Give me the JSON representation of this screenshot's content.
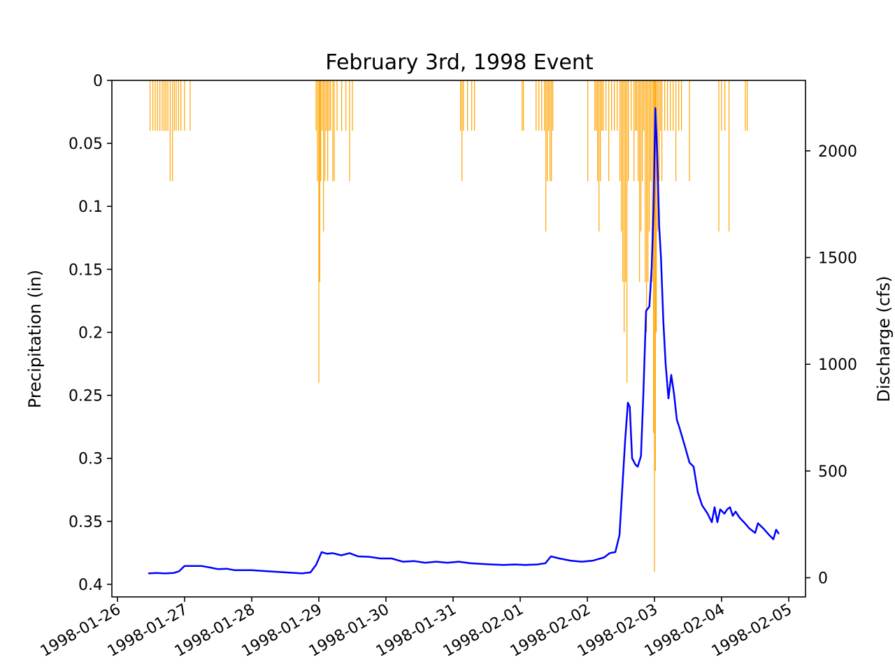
{
  "chart_data": {
    "type": "bar+line",
    "title": "February 3rd, 1998 Event",
    "y_left": {
      "label": "Precipitation (in)",
      "inverted": true,
      "lim": [
        0,
        0.41
      ],
      "ticks": [
        0,
        0.05,
        0.1,
        0.15,
        0.2,
        0.25,
        0.3,
        0.35,
        0.4
      ],
      "tick_labels": [
        "0",
        "0.05",
        "0.1",
        "0.15",
        "0.2",
        "0.25",
        "0.3",
        "0.35",
        "0.4"
      ]
    },
    "y_right": {
      "label": "Discharge (cfs)",
      "lim": [
        -90,
        2330
      ],
      "ticks": [
        0,
        500,
        1000,
        1500,
        2000
      ],
      "tick_labels": [
        "0",
        "500",
        "1000",
        "1500",
        "2000"
      ]
    },
    "x_axis": {
      "lim": [
        "1998-01-25 22:00",
        "1998-02-05 06:00"
      ],
      "ticks": [
        "1998-01-26",
        "1998-01-27",
        "1998-01-28",
        "1998-01-29",
        "1998-01-30",
        "1998-01-31",
        "1998-02-01",
        "1998-02-02",
        "1998-02-03",
        "1998-02-04",
        "1998-02-05"
      ],
      "tick_labels": [
        "1998-01-26",
        "1998-01-27",
        "1998-01-28",
        "1998-01-29",
        "1998-01-30",
        "1998-01-31",
        "1998-02-01",
        "1998-02-02",
        "1998-02-03",
        "1998-02-04",
        "1998-02-05"
      ]
    },
    "series": [
      {
        "type": "bar",
        "color": "#FFA500",
        "axis": "left",
        "points": [
          [
            "1998-01-26 11:40",
            0.04
          ],
          [
            "1998-01-26 12:40",
            0.04
          ],
          [
            "1998-01-26 13:30",
            0.04
          ],
          [
            "1998-01-26 14:20",
            0.04
          ],
          [
            "1998-01-26 15:10",
            0.04
          ],
          [
            "1998-01-26 16:00",
            0.04
          ],
          [
            "1998-01-26 16:40",
            0.04
          ],
          [
            "1998-01-26 17:20",
            0.04
          ],
          [
            "1998-01-26 18:00",
            0.04
          ],
          [
            "1998-01-26 18:50",
            0.08
          ],
          [
            "1998-01-26 19:40",
            0.08
          ],
          [
            "1998-01-26 20:20",
            0.04
          ],
          [
            "1998-01-26 21:00",
            0.04
          ],
          [
            "1998-01-26 21:50",
            0.04
          ],
          [
            "1998-01-26 22:40",
            0.04
          ],
          [
            "1998-01-27 00:00",
            0.04
          ],
          [
            "1998-01-27 02:00",
            0.04
          ],
          [
            "1998-01-28 23:00",
            0.04
          ],
          [
            "1998-01-28 23:30",
            0.08
          ],
          [
            "1998-01-29 00:00",
            0.24
          ],
          [
            "1998-01-29 00:20",
            0.16
          ],
          [
            "1998-01-29 00:40",
            0.08
          ],
          [
            "1998-01-29 01:10",
            0.04
          ],
          [
            "1998-01-29 01:40",
            0.12
          ],
          [
            "1998-01-29 02:10",
            0.08
          ],
          [
            "1998-01-29 02:40",
            0.04
          ],
          [
            "1998-01-29 03:10",
            0.08
          ],
          [
            "1998-01-29 03:40",
            0.04
          ],
          [
            "1998-01-29 04:10",
            0.04
          ],
          [
            "1998-01-29 05:00",
            0.08
          ],
          [
            "1998-01-29 05:30",
            0.08
          ],
          [
            "1998-01-29 06:30",
            0.04
          ],
          [
            "1998-01-29 08:10",
            0.04
          ],
          [
            "1998-01-29 09:40",
            0.04
          ],
          [
            "1998-01-29 11:00",
            0.08
          ],
          [
            "1998-01-29 12:00",
            0.04
          ],
          [
            "1998-01-31 02:40",
            0.04
          ],
          [
            "1998-01-31 03:10",
            0.08
          ],
          [
            "1998-01-31 03:40",
            0.04
          ],
          [
            "1998-01-31 05:10",
            0.04
          ],
          [
            "1998-01-31 06:40",
            0.04
          ],
          [
            "1998-01-31 07:40",
            0.04
          ],
          [
            "1998-02-01 00:40",
            0.04
          ],
          [
            "1998-02-01 01:10",
            0.04
          ],
          [
            "1998-02-01 05:40",
            0.04
          ],
          [
            "1998-02-01 06:40",
            0.04
          ],
          [
            "1998-02-01 07:40",
            0.04
          ],
          [
            "1998-02-01 08:40",
            0.04
          ],
          [
            "1998-02-01 09:10",
            0.12
          ],
          [
            "1998-02-01 09:40",
            0.08
          ],
          [
            "1998-02-01 10:10",
            0.04
          ],
          [
            "1998-02-01 10:40",
            0.08
          ],
          [
            "1998-02-01 11:10",
            0.08
          ],
          [
            "1998-02-01 11:40",
            0.04
          ],
          [
            "1998-02-02 00:10",
            0.08
          ],
          [
            "1998-02-02 02:40",
            0.04
          ],
          [
            "1998-02-02 03:10",
            0.04
          ],
          [
            "1998-02-02 03:40",
            0.08
          ],
          [
            "1998-02-02 04:10",
            0.12
          ],
          [
            "1998-02-02 04:40",
            0.08
          ],
          [
            "1998-02-02 05:10",
            0.04
          ],
          [
            "1998-02-02 05:40",
            0.04
          ],
          [
            "1998-02-02 06:40",
            0.04
          ],
          [
            "1998-02-02 07:40",
            0.08
          ],
          [
            "1998-02-02 08:40",
            0.04
          ],
          [
            "1998-02-02 09:40",
            0.04
          ],
          [
            "1998-02-02 10:40",
            0.04
          ],
          [
            "1998-02-02 11:40",
            0.08
          ],
          [
            "1998-02-02 12:10",
            0.12
          ],
          [
            "1998-02-02 12:40",
            0.16
          ],
          [
            "1998-02-02 13:10",
            0.2
          ],
          [
            "1998-02-02 13:40",
            0.16
          ],
          [
            "1998-02-02 14:10",
            0.24
          ],
          [
            "1998-02-02 14:40",
            0.08
          ],
          [
            "1998-02-02 15:40",
            0.04
          ],
          [
            "1998-02-02 16:40",
            0.08
          ],
          [
            "1998-02-02 17:10",
            0.04
          ],
          [
            "1998-02-02 17:40",
            0.04
          ],
          [
            "1998-02-02 18:10",
            0.08
          ],
          [
            "1998-02-02 18:40",
            0.16
          ],
          [
            "1998-02-02 19:10",
            0.12
          ],
          [
            "1998-02-02 19:40",
            0.08
          ],
          [
            "1998-02-02 20:10",
            0.04
          ],
          [
            "1998-02-02 20:40",
            0.16
          ],
          [
            "1998-02-02 21:10",
            0.2
          ],
          [
            "1998-02-02 21:40",
            0.16
          ],
          [
            "1998-02-02 22:10",
            0.12
          ],
          [
            "1998-02-02 22:40",
            0.08
          ],
          [
            "1998-02-02 23:10",
            0.16
          ],
          [
            "1998-02-02 23:40",
            0.28
          ],
          [
            "1998-02-03 00:00",
            0.39
          ],
          [
            "1998-02-03 00:20",
            0.31
          ],
          [
            "1998-02-03 00:40",
            0.2
          ],
          [
            "1998-02-03 01:10",
            0.12
          ],
          [
            "1998-02-03 01:40",
            0.08
          ],
          [
            "1998-02-03 02:10",
            0.04
          ],
          [
            "1998-02-03 02:40",
            0.08
          ],
          [
            "1998-02-03 03:40",
            0.04
          ],
          [
            "1998-02-03 04:40",
            0.04
          ],
          [
            "1998-02-03 05:40",
            0.04
          ],
          [
            "1998-02-03 06:40",
            0.04
          ],
          [
            "1998-02-03 07:40",
            0.08
          ],
          [
            "1998-02-03 08:40",
            0.04
          ],
          [
            "1998-02-03 09:40",
            0.04
          ],
          [
            "1998-02-03 12:30",
            0.08
          ],
          [
            "1998-02-03 23:00",
            0.12
          ],
          [
            "1998-02-04 00:00",
            0.04
          ],
          [
            "1998-02-04 01:10",
            0.04
          ],
          [
            "1998-02-04 02:40",
            0.12
          ],
          [
            "1998-02-04 08:30",
            0.04
          ],
          [
            "1998-02-04 09:10",
            0.04
          ]
        ]
      },
      {
        "type": "line",
        "color": "#0000FF",
        "axis": "right",
        "points": [
          [
            "1998-01-26 11:00",
            20
          ],
          [
            "1998-01-26 14:00",
            22
          ],
          [
            "1998-01-26 17:00",
            20
          ],
          [
            "1998-01-26 20:00",
            22
          ],
          [
            "1998-01-26 22:00",
            30
          ],
          [
            "1998-01-27 00:00",
            55
          ],
          [
            "1998-01-27 03:00",
            55
          ],
          [
            "1998-01-27 06:00",
            55
          ],
          [
            "1998-01-27 09:00",
            48
          ],
          [
            "1998-01-27 12:00",
            40
          ],
          [
            "1998-01-27 15:00",
            42
          ],
          [
            "1998-01-27 18:00",
            35
          ],
          [
            "1998-01-28 00:00",
            35
          ],
          [
            "1998-01-28 06:00",
            30
          ],
          [
            "1998-01-28 12:00",
            25
          ],
          [
            "1998-01-28 18:00",
            20
          ],
          [
            "1998-01-28 21:00",
            25
          ],
          [
            "1998-01-28 23:00",
            60
          ],
          [
            "1998-01-29 01:00",
            120
          ],
          [
            "1998-01-29 03:00",
            112
          ],
          [
            "1998-01-29 05:00",
            115
          ],
          [
            "1998-01-29 08:00",
            105
          ],
          [
            "1998-01-29 11:00",
            115
          ],
          [
            "1998-01-29 14:00",
            100
          ],
          [
            "1998-01-29 18:00",
            98
          ],
          [
            "1998-01-29 22:00",
            90
          ],
          [
            "1998-01-30 02:00",
            90
          ],
          [
            "1998-01-30 06:00",
            75
          ],
          [
            "1998-01-30 10:00",
            78
          ],
          [
            "1998-01-30 14:00",
            70
          ],
          [
            "1998-01-30 18:00",
            75
          ],
          [
            "1998-01-30 22:00",
            70
          ],
          [
            "1998-01-31 02:00",
            75
          ],
          [
            "1998-01-31 06:00",
            68
          ],
          [
            "1998-01-31 10:00",
            65
          ],
          [
            "1998-01-31 14:00",
            62
          ],
          [
            "1998-01-31 18:00",
            60
          ],
          [
            "1998-01-31 22:00",
            62
          ],
          [
            "1998-02-01 02:00",
            60
          ],
          [
            "1998-02-01 06:00",
            62
          ],
          [
            "1998-02-01 09:00",
            68
          ],
          [
            "1998-02-01 11:00",
            100
          ],
          [
            "1998-02-01 14:00",
            90
          ],
          [
            "1998-02-01 18:00",
            80
          ],
          [
            "1998-02-01 22:00",
            75
          ],
          [
            "1998-02-02 02:00",
            80
          ],
          [
            "1998-02-02 06:00",
            95
          ],
          [
            "1998-02-02 08:00",
            115
          ],
          [
            "1998-02-02 10:00",
            120
          ],
          [
            "1998-02-02 11:30",
            200
          ],
          [
            "1998-02-02 12:30",
            420
          ],
          [
            "1998-02-02 13:30",
            640
          ],
          [
            "1998-02-02 14:30",
            820
          ],
          [
            "1998-02-02 15:10",
            800
          ],
          [
            "1998-02-02 16:00",
            560
          ],
          [
            "1998-02-02 17:10",
            530
          ],
          [
            "1998-02-02 18:00",
            520
          ],
          [
            "1998-02-02 19:10",
            570
          ],
          [
            "1998-02-02 20:00",
            850
          ],
          [
            "1998-02-02 21:00",
            1250
          ],
          [
            "1998-02-02 22:10",
            1270
          ],
          [
            "1998-02-02 23:00",
            1450
          ],
          [
            "1998-02-02 23:40",
            1730
          ],
          [
            "1998-02-03 00:20",
            2200
          ],
          [
            "1998-02-03 01:00",
            1980
          ],
          [
            "1998-02-03 01:40",
            1650
          ],
          [
            "1998-02-03 02:20",
            1500
          ],
          [
            "1998-02-03 03:10",
            1200
          ],
          [
            "1998-02-03 04:00",
            1000
          ],
          [
            "1998-02-03 05:00",
            840
          ],
          [
            "1998-02-03 06:00",
            950
          ],
          [
            "1998-02-03 07:00",
            860
          ],
          [
            "1998-02-03 08:00",
            740
          ],
          [
            "1998-02-03 09:00",
            700
          ],
          [
            "1998-02-03 11:00",
            610
          ],
          [
            "1998-02-03 12:30",
            540
          ],
          [
            "1998-02-03 14:00",
            520
          ],
          [
            "1998-02-03 15:30",
            400
          ],
          [
            "1998-02-03 17:00",
            340
          ],
          [
            "1998-02-03 19:00",
            300
          ],
          [
            "1998-02-03 20:30",
            260
          ],
          [
            "1998-02-03 21:30",
            330
          ],
          [
            "1998-02-03 22:30",
            260
          ],
          [
            "1998-02-03 23:30",
            320
          ],
          [
            "1998-02-04 01:00",
            300
          ],
          [
            "1998-02-04 02:00",
            320
          ],
          [
            "1998-02-04 03:00",
            330
          ],
          [
            "1998-02-04 04:00",
            290
          ],
          [
            "1998-02-04 05:00",
            310
          ],
          [
            "1998-02-04 06:30",
            280
          ],
          [
            "1998-02-04 08:00",
            260
          ],
          [
            "1998-02-04 10:00",
            230
          ],
          [
            "1998-02-04 12:00",
            210
          ],
          [
            "1998-02-04 13:00",
            255
          ],
          [
            "1998-02-04 15:00",
            230
          ],
          [
            "1998-02-04 17:00",
            200
          ],
          [
            "1998-02-04 18:30",
            180
          ],
          [
            "1998-02-04 19:30",
            225
          ],
          [
            "1998-02-04 20:30",
            205
          ]
        ]
      }
    ],
    "grid": false
  }
}
